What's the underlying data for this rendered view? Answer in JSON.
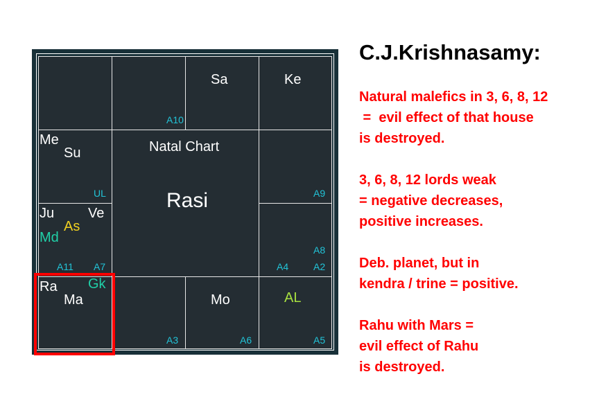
{
  "chart": {
    "title": "Natal Chart",
    "subtitle": "Rasi",
    "houses": {
      "r0c0": {
        "planets": [],
        "arudhas": []
      },
      "r0c1": {
        "planets": [],
        "arudhas": [
          "A10"
        ]
      },
      "r0c2": {
        "planets": [
          "Sa"
        ],
        "arudhas": []
      },
      "r0c3": {
        "planets": [
          "Ke"
        ],
        "arudhas": []
      },
      "r1c0": {
        "planets": [
          "Me",
          "Su"
        ],
        "arudhas": [
          "UL"
        ]
      },
      "r1c3": {
        "planets": [],
        "arudhas": [
          "A9"
        ]
      },
      "r2c0": {
        "planets": [
          "Ju",
          "Ve",
          "As",
          "Md"
        ],
        "arudhas": [
          "A11",
          "A7"
        ]
      },
      "r2c3": {
        "planets": [],
        "arudhas": [
          "A8",
          "A4",
          "A2"
        ]
      },
      "r3c0": {
        "planets": [
          "Ra",
          "Gk",
          "Ma"
        ],
        "arudhas": []
      },
      "r3c1": {
        "planets": [],
        "arudhas": [
          "A3"
        ]
      },
      "r3c2": {
        "planets": [
          "Mo"
        ],
        "arudhas": [
          "A6"
        ]
      },
      "r3c3": {
        "planets": [
          "AL"
        ],
        "arudhas": [
          "A5"
        ]
      }
    },
    "colors": {
      "background": "#242d33",
      "planet": "#ffffff",
      "ascendant": "#f0d020",
      "special": "#20d0a8",
      "arudha_lagna": "#a8e040",
      "arudha": "#22c4d8",
      "highlight": "#ff0000"
    },
    "highlighted_house": "r3c0"
  },
  "notes": {
    "heading": "C.J.Krishnasamy:",
    "items": [
      "Natural malefics in 3, 6, 8, 12\n =  evil effect of that house\nis destroyed.",
      "3, 6, 8, 12 lords weak\n= negative decreases,\npositive increases.",
      "Deb. planet, but in\nkendra / trine = positive.",
      "Rahu with Mars =\nevil effect of Rahu\nis destroyed."
    ]
  }
}
